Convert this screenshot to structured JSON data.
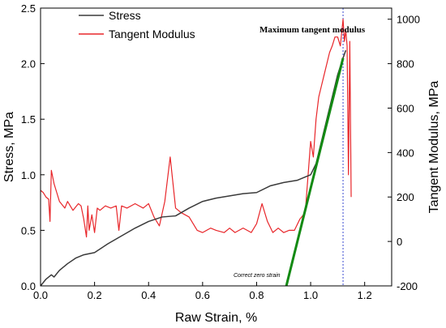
{
  "chart_data": {
    "type": "line",
    "title": "",
    "xlabel": "Raw Strain, %",
    "ylabel_left": "Stress, MPa",
    "ylabel_right": "Tangent Modulus, MPa",
    "xlim": [
      0,
      1.3
    ],
    "ylim_left": [
      0,
      2.5
    ],
    "ylim_right": [
      -200,
      1050
    ],
    "x_ticks": [
      0.0,
      0.2,
      0.4,
      0.6,
      0.8,
      1.0,
      1.2
    ],
    "x_tick_labels": [
      "0.0",
      "0.2",
      "0.4",
      "0.6",
      "0.8",
      "1.0",
      "1.2"
    ],
    "y_left_ticks": [
      0.0,
      0.5,
      1.0,
      1.5,
      2.0,
      2.5
    ],
    "y_left_tick_labels": [
      "0.0",
      "0.5",
      "1.0",
      "1.5",
      "2.0",
      "2.5"
    ],
    "y_right_ticks": [
      -200,
      0,
      200,
      400,
      600,
      800,
      1000
    ],
    "y_right_tick_labels": [
      "-200",
      "0",
      "200",
      "400",
      "600",
      "800",
      "1000"
    ],
    "grid": false,
    "legend_position": "top-left",
    "colors": {
      "stress": "#3a3a3a",
      "tangent": "#e8262a",
      "tangent_line": "#138a13",
      "guide_line": "#3b4bd0"
    },
    "series": [
      {
        "name": "Stress",
        "axis": "left",
        "x": [
          0.0,
          0.02,
          0.04,
          0.05,
          0.07,
          0.1,
          0.13,
          0.16,
          0.2,
          0.25,
          0.3,
          0.35,
          0.4,
          0.45,
          0.5,
          0.55,
          0.6,
          0.65,
          0.7,
          0.75,
          0.8,
          0.85,
          0.9,
          0.95,
          1.0,
          1.02,
          1.04,
          1.06,
          1.08,
          1.1,
          1.12,
          1.13
        ],
        "y": [
          0.0,
          0.06,
          0.1,
          0.08,
          0.14,
          0.2,
          0.25,
          0.28,
          0.3,
          0.38,
          0.45,
          0.52,
          0.58,
          0.62,
          0.63,
          0.7,
          0.76,
          0.79,
          0.81,
          0.83,
          0.84,
          0.9,
          0.93,
          0.95,
          1.0,
          1.1,
          1.3,
          1.5,
          1.7,
          1.9,
          2.05,
          2.12
        ]
      },
      {
        "name": "Tangent Modulus",
        "axis": "right",
        "x": [
          0.0,
          0.01,
          0.02,
          0.03,
          0.035,
          0.04,
          0.05,
          0.06,
          0.07,
          0.09,
          0.1,
          0.12,
          0.14,
          0.15,
          0.16,
          0.17,
          0.175,
          0.18,
          0.19,
          0.2,
          0.21,
          0.22,
          0.24,
          0.26,
          0.28,
          0.29,
          0.3,
          0.32,
          0.35,
          0.38,
          0.4,
          0.42,
          0.44,
          0.46,
          0.48,
          0.5,
          0.52,
          0.55,
          0.58,
          0.6,
          0.63,
          0.65,
          0.68,
          0.7,
          0.72,
          0.75,
          0.78,
          0.8,
          0.82,
          0.84,
          0.86,
          0.88,
          0.9,
          0.92,
          0.94,
          0.96,
          0.98,
          1.0,
          1.01,
          1.02,
          1.03,
          1.04,
          1.05,
          1.06,
          1.07,
          1.08,
          1.09,
          1.1,
          1.11,
          1.12,
          1.125,
          1.13,
          1.135,
          1.14,
          1.145,
          1.15
        ],
        "y": [
          230,
          220,
          200,
          190,
          90,
          320,
          260,
          220,
          180,
          150,
          180,
          140,
          170,
          160,
          100,
          20,
          160,
          50,
          120,
          40,
          150,
          140,
          160,
          150,
          160,
          50,
          160,
          150,
          170,
          150,
          170,
          110,
          70,
          180,
          380,
          150,
          130,
          110,
          50,
          40,
          60,
          50,
          40,
          60,
          40,
          60,
          40,
          80,
          170,
          90,
          40,
          60,
          40,
          50,
          50,
          100,
          130,
          450,
          380,
          550,
          650,
          700,
          750,
          800,
          850,
          880,
          920,
          920,
          880,
          1000,
          900,
          950,
          880,
          300,
          900,
          200
        ]
      }
    ],
    "tangent_line": {
      "x": [
        0.91,
        1.12
      ],
      "y_left": [
        0.0,
        2.05
      ]
    },
    "guide_line": {
      "x": 1.12
    },
    "annotations": {
      "max_modulus": "Maximum tangent modulus",
      "zero_strain": "Correct zero strain"
    }
  }
}
